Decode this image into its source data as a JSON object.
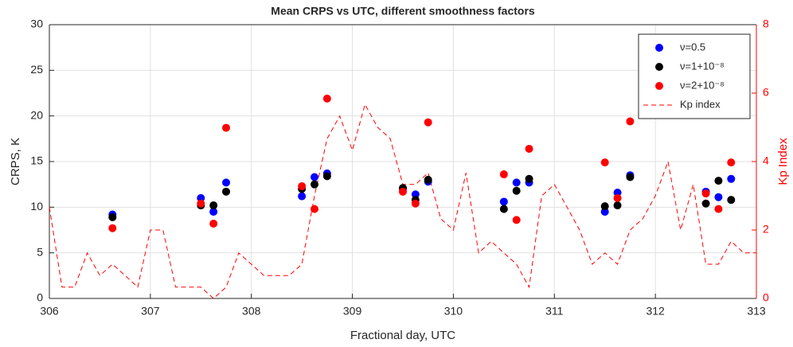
{
  "chart_data": {
    "type": "scatter",
    "title": "Mean CRPS vs UTC, different smoothness factors",
    "x_label": "Fractional day, UTC",
    "y_label": "CRPS, K",
    "y2_label": "Kp Index",
    "xlim": [
      306,
      313
    ],
    "xticks": [
      306,
      307,
      308,
      309,
      310,
      311,
      312,
      313
    ],
    "ylim": [
      0,
      30
    ],
    "yticks": [
      0,
      5,
      10,
      15,
      20,
      25,
      30
    ],
    "y2lim": [
      0,
      8
    ],
    "y2ticks": [
      0,
      2,
      4,
      6,
      8
    ],
    "y2_color": "#ff0000",
    "grid": true,
    "legend": "top-right",
    "series": [
      {
        "name": "ν=0.5",
        "color": "#0000ff",
        "type": "scatter",
        "x": [
          306.625,
          307.5,
          307.625,
          307.75,
          308.5,
          308.625,
          308.75,
          309.5,
          309.625,
          309.75,
          310.5,
          310.625,
          310.75,
          311.5,
          311.625,
          311.75,
          312.5,
          312.625,
          312.75
        ],
        "values": [
          9.2,
          11.0,
          9.5,
          12.7,
          11.2,
          13.3,
          13.7,
          12.0,
          11.4,
          12.8,
          10.6,
          12.7,
          12.7,
          9.5,
          11.6,
          13.5,
          11.7,
          11.1,
          13.1
        ]
      },
      {
        "name": "ν=1+10⁻⁸",
        "color": "#000000",
        "type": "scatter",
        "x": [
          306.625,
          307.5,
          307.625,
          307.75,
          308.5,
          308.625,
          308.75,
          309.5,
          309.625,
          309.75,
          310.5,
          310.625,
          310.75,
          311.5,
          311.625,
          311.75,
          312.5,
          312.625,
          312.75
        ],
        "values": [
          8.9,
          10.2,
          10.2,
          11.7,
          12.0,
          12.5,
          13.4,
          12.1,
          10.8,
          13.0,
          9.8,
          11.8,
          13.1,
          10.1,
          10.2,
          13.3,
          10.4,
          12.9,
          10.8
        ]
      },
      {
        "name": "ν=2+10⁻⁸",
        "color": "#ff0000",
        "type": "scatter",
        "x": [
          306.625,
          307.5,
          307.625,
          307.75,
          308.5,
          308.625,
          308.75,
          309.5,
          309.625,
          309.75,
          310.5,
          310.625,
          310.75,
          311.5,
          311.625,
          311.75,
          312.5,
          312.625,
          312.75
        ],
        "values": [
          7.7,
          10.4,
          8.2,
          18.7,
          12.3,
          9.8,
          21.9,
          11.7,
          10.4,
          19.3,
          13.6,
          8.6,
          16.4,
          14.9,
          11.0,
          19.4,
          11.5,
          9.8,
          14.9
        ]
      },
      {
        "name": "Kp index",
        "color": "#ff0000",
        "type": "line",
        "dashed": true,
        "axis": "y2",
        "x": [
          306,
          306.125,
          306.25,
          306.375,
          306.5,
          306.625,
          306.75,
          306.875,
          307,
          307.125,
          307.25,
          307.375,
          307.5,
          307.625,
          307.75,
          307.875,
          308,
          308.125,
          308.25,
          308.375,
          308.5,
          308.625,
          308.75,
          308.875,
          309,
          309.125,
          309.25,
          309.375,
          309.5,
          309.625,
          309.75,
          309.875,
          310,
          310.125,
          310.25,
          310.375,
          310.5,
          310.625,
          310.75,
          310.875,
          311,
          311.125,
          311.25,
          311.375,
          311.5,
          311.625,
          311.75,
          311.875,
          312,
          312.125,
          312.25,
          312.375,
          312.5,
          312.625,
          312.75,
          312.875,
          313
        ],
        "values": [
          2.67,
          0.33,
          0.33,
          1.33,
          0.67,
          1.0,
          0.67,
          0.33,
          2.0,
          2.0,
          0.33,
          0.33,
          0.33,
          0.0,
          0.33,
          1.33,
          1.0,
          0.67,
          0.67,
          0.67,
          1.0,
          3.0,
          4.67,
          5.33,
          4.33,
          5.67,
          5.0,
          4.67,
          3.33,
          3.33,
          3.67,
          2.33,
          2.0,
          3.67,
          1.33,
          1.67,
          1.33,
          1.0,
          0.33,
          3.0,
          3.33,
          2.67,
          2.0,
          1.0,
          1.33,
          1.0,
          2.0,
          2.33,
          3.0,
          4.0,
          2.0,
          3.33,
          1.0,
          1.0,
          1.67,
          1.33,
          1.33
        ]
      }
    ]
  }
}
